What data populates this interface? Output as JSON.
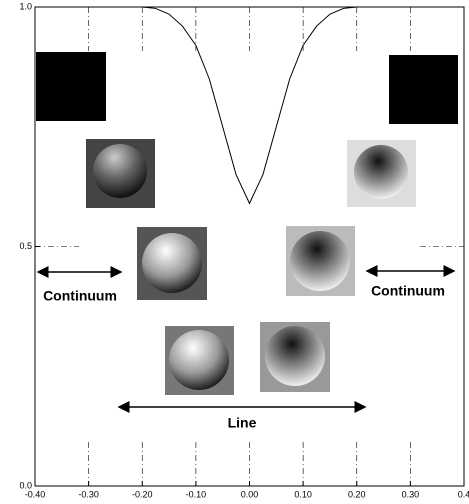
{
  "chart_data": {
    "type": "line",
    "x": [
      -0.2,
      -0.175,
      -0.15,
      -0.125,
      -0.1,
      -0.075,
      -0.05,
      -0.025,
      0,
      0.025,
      0.05,
      0.075,
      0.1,
      0.125,
      0.15,
      0.175,
      0.2
    ],
    "series": [
      {
        "color": "#000000",
        "values": [
          1.0,
          0.997,
          0.985,
          0.96,
          0.92,
          0.85,
          0.75,
          0.65,
          0.59,
          0.65,
          0.75,
          0.85,
          0.92,
          0.96,
          0.985,
          0.997,
          1.0
        ]
      }
    ],
    "xlim": [
      -0.4,
      0.4
    ],
    "ylim": [
      0,
      1
    ],
    "xticks": [
      {
        "value": -0.4,
        "label": "-0.40"
      },
      {
        "value": -0.3,
        "label": "-0.30"
      },
      {
        "value": -0.2,
        "label": "-0.20"
      },
      {
        "value": -0.1,
        "label": "-0.10"
      },
      {
        "value": 0,
        "label": "0.00"
      },
      {
        "value": 0.1,
        "label": "0.10"
      },
      {
        "value": 0.2,
        "label": "0.20"
      },
      {
        "value": 0.3,
        "label": "0.30"
      },
      {
        "value": 0.4,
        "label": "0.4"
      }
    ],
    "yticks": [
      {
        "value": 0,
        "label": "0.0"
      },
      {
        "value": 0.5,
        "label": "0.5"
      },
      {
        "value": 1,
        "label": "1.0"
      }
    ],
    "annotations": [
      "Continuum",
      "Continuum",
      "Line"
    ]
  }
}
